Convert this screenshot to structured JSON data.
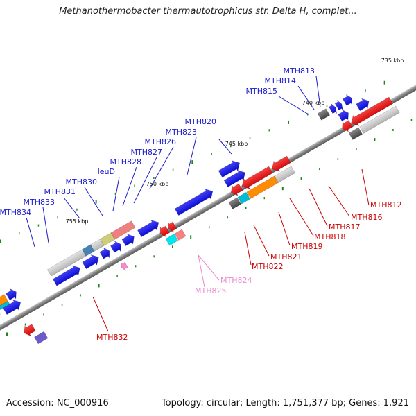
{
  "title": "Methanothermobacter thermautotrophicus str. Delta H, complet...",
  "footer": {
    "accession": "Accession: NC_000916",
    "topology": "Topology: circular; Length: 1,751,377 bp; Genes: 1,921"
  },
  "colors": {
    "forward_label": "#1a1acc",
    "reverse_label": "#cc0000",
    "pseudo_label": "#ee88cc",
    "backbone": "#808080",
    "tick": "#1a8a1a"
  },
  "kbp_ticks": [
    {
      "label": "735 kbp",
      "kbp": 735
    },
    {
      "label": "740 kbp",
      "kbp": 740
    },
    {
      "label": "745 kbp",
      "kbp": 745
    },
    {
      "label": "750 kbp",
      "kbp": 750
    },
    {
      "label": "755 kbp",
      "kbp": 755
    }
  ],
  "forward_labels": [
    "MTH813",
    "MTH814",
    "MTH815",
    "MTH820",
    "MTH823",
    "MTH826",
    "MTH827",
    "MTH828",
    "leuD",
    "MTH830",
    "MTH831",
    "MTH833",
    "MTH834"
  ],
  "reverse_labels": [
    "MTH812",
    "MTH816",
    "MTH817",
    "MTH818",
    "MTH819",
    "MTH821",
    "MTH822",
    "MTH832"
  ],
  "pseudo_labels": [
    "MTH824",
    "MTH825"
  ]
}
